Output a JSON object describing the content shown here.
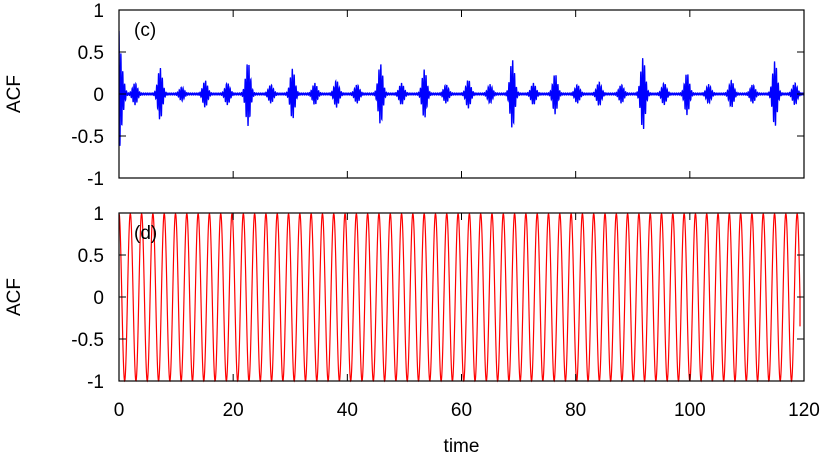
{
  "chart_data": [
    {
      "type": "line",
      "panel_label": "(c)",
      "ylabel": "ACF",
      "xlim": [
        0,
        120
      ],
      "ylim": [
        -1,
        1
      ],
      "yticks": [
        -1,
        -0.5,
        0,
        0.5,
        1
      ],
      "ytick_labels": [
        "-1",
        "-0.5",
        "0",
        "0.5",
        "1"
      ],
      "xticks": [
        0,
        20,
        40,
        60,
        80,
        100,
        120
      ],
      "grid": false,
      "color": "#0000ff",
      "series": [
        {
          "signal": "decaying-then-bursting oscillation",
          "initial_peak": 0.75,
          "initial_trough": -0.75,
          "burst_centers": [
            2.8,
            7.2,
            11,
            15.1,
            19,
            22.6,
            26.6,
            30.4,
            34.3,
            38.1,
            41.7,
            45.8,
            49.5,
            53.5,
            57.3,
            61.2,
            65,
            68.9,
            72.6,
            76.4,
            80.3,
            84.1,
            88,
            91.8,
            95.5,
            99.5,
            103.3,
            107.3,
            111,
            114.9,
            118.4
          ],
          "burst_amplitudes": [
            0.12,
            0.3,
            0.07,
            0.15,
            0.12,
            0.37,
            0.1,
            0.29,
            0.12,
            0.15,
            0.1,
            0.35,
            0.12,
            0.28,
            0.1,
            0.16,
            0.1,
            0.4,
            0.12,
            0.23,
            0.1,
            0.13,
            0.1,
            0.42,
            0.12,
            0.24,
            0.1,
            0.15,
            0.1,
            0.38,
            0.12
          ],
          "oscillation_period": 0.33
        }
      ]
    },
    {
      "type": "line",
      "panel_label": "(d)",
      "ylabel": "ACF",
      "xlabel": "time",
      "xlim": [
        0,
        120
      ],
      "ylim": [
        -1,
        1
      ],
      "yticks": [
        -1,
        -0.5,
        0,
        0.5,
        1
      ],
      "ytick_labels": [
        "-1",
        "-0.5",
        "0",
        "0.5",
        "1"
      ],
      "xticks": [
        0,
        20,
        40,
        60,
        80,
        100,
        120
      ],
      "xtick_labels": [
        "0",
        "20",
        "40",
        "60",
        "80",
        "100",
        "120"
      ],
      "grid": false,
      "color": "#ff0000",
      "series": [
        {
          "signal": "sustained oscillation",
          "amplitude": 1.0,
          "min_peak": 0.97,
          "period": 1.98,
          "x_end": 119.3,
          "end_value": -0.35
        }
      ]
    }
  ]
}
